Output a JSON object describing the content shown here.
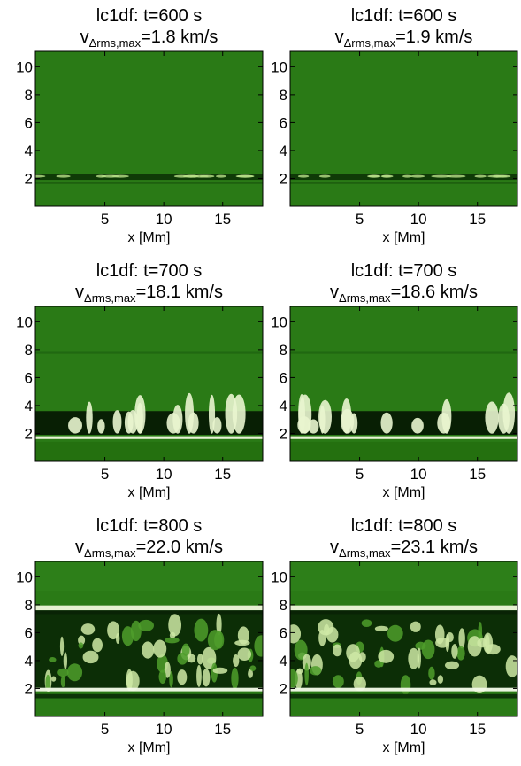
{
  "chart_data": [
    {
      "type": "image",
      "title": "lc1df:   t=600 s",
      "subtitle_var": "v",
      "subtitle_sub": "Δrms,max",
      "subtitle_rest": "=1.8 km/s",
      "xlabel": "x [Mm]",
      "xlim": [
        -0.9,
        18.4
      ],
      "ylim": [
        0,
        11.1
      ],
      "xticks": [
        5,
        10,
        15
      ],
      "yticks": [
        2,
        4,
        6,
        8,
        10
      ]
    },
    {
      "type": "image",
      "title": "lc1df:   t=600 s",
      "subtitle_var": "v",
      "subtitle_sub": "Δrms,max",
      "subtitle_rest": "=1.9 km/s",
      "xlabel": "x [Mm]",
      "xlim": [
        -0.9,
        18.4
      ],
      "ylim": [
        0,
        11.1
      ],
      "xticks": [
        5,
        10,
        15
      ],
      "yticks": [
        2,
        4,
        6,
        8,
        10
      ]
    },
    {
      "type": "image",
      "title": "lc1df:   t=700 s",
      "subtitle_var": "v",
      "subtitle_sub": "Δrms,max",
      "subtitle_rest": "=18.1 km/s",
      "xlabel": "x [Mm]",
      "xlim": [
        -0.9,
        18.4
      ],
      "ylim": [
        0,
        11.1
      ],
      "xticks": [
        5,
        10,
        15
      ],
      "yticks": [
        2,
        4,
        6,
        8,
        10
      ]
    },
    {
      "type": "image",
      "title": "lc1df:   t=700 s",
      "subtitle_var": "v",
      "subtitle_sub": "Δrms,max",
      "subtitle_rest": "=18.6 km/s",
      "xlabel": "x [Mm]",
      "xlim": [
        -0.9,
        18.4
      ],
      "ylim": [
        0,
        11.1
      ],
      "xticks": [
        5,
        10,
        15
      ],
      "yticks": [
        2,
        4,
        6,
        8,
        10
      ]
    },
    {
      "type": "image",
      "title": "lc1df:   t=800 s",
      "subtitle_var": "v",
      "subtitle_sub": "Δrms,max",
      "subtitle_rest": "=22.0 km/s",
      "xlabel": "x [Mm]",
      "xlim": [
        -0.9,
        18.4
      ],
      "ylim": [
        0,
        11.1
      ],
      "xticks": [
        5,
        10,
        15
      ],
      "yticks": [
        2,
        4,
        6,
        8,
        10
      ]
    },
    {
      "type": "image",
      "title": "lc1df:   t=800 s",
      "subtitle_var": "v",
      "subtitle_sub": "Δrms,max",
      "subtitle_rest": "=23.1 km/s",
      "xlabel": "x [Mm]",
      "xlim": [
        -0.9,
        18.4
      ],
      "ylim": [
        0,
        11.1
      ],
      "xticks": [
        5,
        10,
        15
      ],
      "yticks": [
        2,
        4,
        6,
        8,
        10
      ]
    }
  ]
}
